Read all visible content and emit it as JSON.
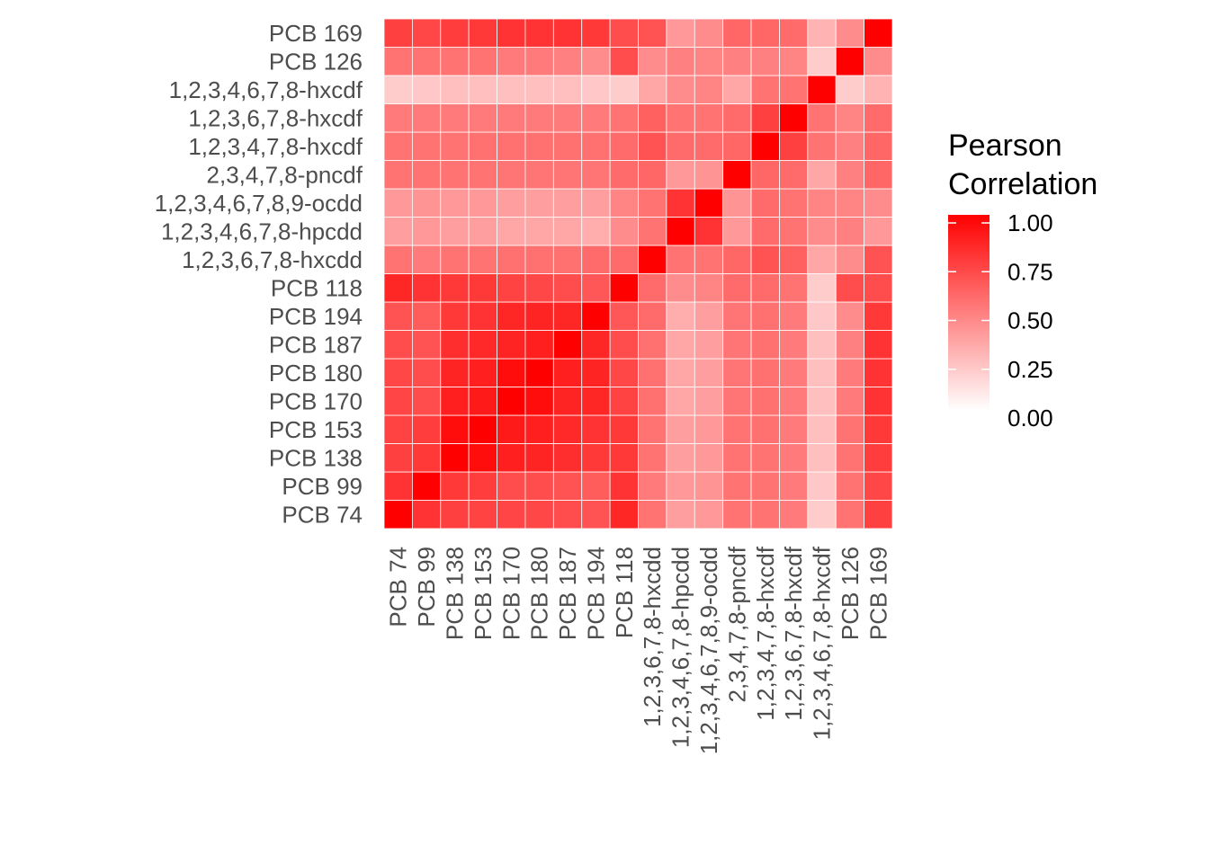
{
  "chart_data": {
    "type": "heatmap",
    "title": "",
    "xlabel": "",
    "ylabel": "",
    "variables": [
      "PCB 74",
      "PCB 99",
      "PCB 138",
      "PCB 153",
      "PCB 170",
      "PCB 180",
      "PCB 187",
      "PCB 194",
      "PCB 118",
      "1,2,3,6,7,8-hxcdd",
      "1,2,3,4,6,7,8-hpcdd",
      "1,2,3,4,6,7,8,9-ocdd",
      "2,3,4,7,8-pncdf",
      "1,2,3,4,7,8-hxcdf",
      "1,2,3,6,7,8-hxcdf",
      "1,2,3,4,6,7,8-hxcdf",
      "PCB 126",
      "PCB 169"
    ],
    "matrix": [
      [
        1.0,
        0.8,
        0.75,
        0.74,
        0.73,
        0.72,
        0.7,
        0.68,
        0.85,
        0.55,
        0.38,
        0.4,
        0.55,
        0.55,
        0.52,
        0.2,
        0.55,
        0.75
      ],
      [
        0.8,
        1.0,
        0.78,
        0.76,
        0.7,
        0.7,
        0.68,
        0.64,
        0.8,
        0.52,
        0.4,
        0.42,
        0.55,
        0.55,
        0.52,
        0.22,
        0.55,
        0.72
      ],
      [
        0.75,
        0.78,
        1.0,
        0.95,
        0.88,
        0.86,
        0.82,
        0.78,
        0.78,
        0.55,
        0.38,
        0.4,
        0.55,
        0.55,
        0.52,
        0.25,
        0.55,
        0.76
      ],
      [
        0.74,
        0.76,
        0.95,
        1.0,
        0.9,
        0.88,
        0.84,
        0.8,
        0.78,
        0.55,
        0.38,
        0.4,
        0.55,
        0.56,
        0.52,
        0.25,
        0.55,
        0.78
      ],
      [
        0.73,
        0.7,
        0.88,
        0.9,
        1.0,
        0.95,
        0.86,
        0.85,
        0.74,
        0.56,
        0.35,
        0.38,
        0.54,
        0.56,
        0.52,
        0.25,
        0.52,
        0.8
      ],
      [
        0.72,
        0.7,
        0.86,
        0.88,
        0.95,
        1.0,
        0.88,
        0.86,
        0.72,
        0.56,
        0.35,
        0.38,
        0.54,
        0.56,
        0.52,
        0.25,
        0.52,
        0.8
      ],
      [
        0.7,
        0.68,
        0.82,
        0.84,
        0.86,
        0.88,
        1.0,
        0.85,
        0.7,
        0.56,
        0.35,
        0.38,
        0.54,
        0.56,
        0.52,
        0.25,
        0.5,
        0.8
      ],
      [
        0.68,
        0.64,
        0.78,
        0.8,
        0.85,
        0.86,
        0.85,
        1.0,
        0.66,
        0.58,
        0.32,
        0.38,
        0.54,
        0.56,
        0.52,
        0.22,
        0.45,
        0.78
      ],
      [
        0.85,
        0.8,
        0.78,
        0.78,
        0.74,
        0.72,
        0.7,
        0.66,
        1.0,
        0.58,
        0.45,
        0.48,
        0.58,
        0.58,
        0.55,
        0.2,
        0.7,
        0.7
      ],
      [
        0.55,
        0.52,
        0.55,
        0.55,
        0.56,
        0.56,
        0.56,
        0.58,
        0.58,
        1.0,
        0.55,
        0.55,
        0.6,
        0.68,
        0.62,
        0.35,
        0.45,
        0.68
      ],
      [
        0.38,
        0.4,
        0.38,
        0.38,
        0.35,
        0.35,
        0.35,
        0.32,
        0.45,
        0.55,
        1.0,
        0.8,
        0.4,
        0.58,
        0.55,
        0.45,
        0.5,
        0.4
      ],
      [
        0.4,
        0.42,
        0.4,
        0.4,
        0.38,
        0.38,
        0.38,
        0.38,
        0.48,
        0.55,
        0.8,
        1.0,
        0.42,
        0.58,
        0.55,
        0.48,
        0.48,
        0.45
      ],
      [
        0.55,
        0.55,
        0.55,
        0.55,
        0.54,
        0.54,
        0.54,
        0.54,
        0.58,
        0.6,
        0.4,
        0.42,
        1.0,
        0.6,
        0.58,
        0.35,
        0.5,
        0.6
      ],
      [
        0.55,
        0.55,
        0.55,
        0.56,
        0.56,
        0.56,
        0.56,
        0.56,
        0.58,
        0.68,
        0.58,
        0.58,
        0.6,
        1.0,
        0.75,
        0.55,
        0.5,
        0.6
      ],
      [
        0.52,
        0.52,
        0.52,
        0.52,
        0.52,
        0.52,
        0.52,
        0.52,
        0.55,
        0.62,
        0.55,
        0.55,
        0.58,
        0.75,
        1.0,
        0.55,
        0.48,
        0.58
      ],
      [
        0.2,
        0.22,
        0.25,
        0.25,
        0.25,
        0.25,
        0.25,
        0.22,
        0.2,
        0.35,
        0.45,
        0.48,
        0.35,
        0.55,
        0.55,
        1.0,
        0.2,
        0.3
      ],
      [
        0.55,
        0.55,
        0.55,
        0.55,
        0.52,
        0.52,
        0.5,
        0.45,
        0.7,
        0.45,
        0.5,
        0.48,
        0.5,
        0.5,
        0.48,
        0.2,
        1.0,
        0.45
      ],
      [
        0.75,
        0.72,
        0.76,
        0.78,
        0.8,
        0.8,
        0.8,
        0.78,
        0.7,
        0.68,
        0.4,
        0.45,
        0.6,
        0.6,
        0.58,
        0.3,
        0.45,
        1.0
      ]
    ],
    "color_scale": {
      "low": "#ffffff",
      "high": "#ff0000",
      "min": 0,
      "max": 1
    },
    "grid": true,
    "legend": {
      "position": "right",
      "title_lines": [
        "Pearson",
        "Correlation"
      ],
      "breaks": [
        0,
        0.25,
        0.5,
        0.75,
        1.0
      ],
      "labels": [
        "0.00",
        "0.25",
        "0.50",
        "0.75",
        "1.00"
      ]
    }
  }
}
